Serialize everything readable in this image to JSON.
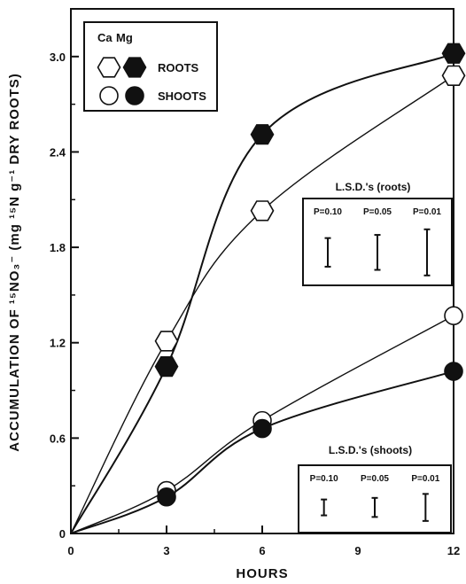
{
  "chart_data": {
    "type": "line",
    "xlabel": "HOURS",
    "ylabel": "ACCUMULATION OF ¹⁵NO₃⁻ (mg ¹⁵N g⁻¹ DRY ROOTS)",
    "xlim": [
      0,
      12
    ],
    "ylim": [
      0,
      3.3
    ],
    "x_ticks": [
      "0",
      "3",
      "6",
      "9",
      "12"
    ],
    "y_ticks": [
      "0",
      "0.6",
      "1.2",
      "1.8",
      "2.4",
      "3.0"
    ],
    "x": [
      0,
      3,
      6,
      12
    ],
    "legend": {
      "header_ca": "Ca",
      "header_mg": "Mg",
      "rows": [
        {
          "label": "ROOTS",
          "marker": "hexagon"
        },
        {
          "label": "SHOOTS",
          "marker": "circle"
        }
      ]
    },
    "series": [
      {
        "name": "Ca ROOTS",
        "treatment": "Ca",
        "organ": "roots",
        "marker": "hexagon",
        "filled": false,
        "values": [
          0,
          1.21,
          2.03,
          2.88
        ]
      },
      {
        "name": "Mg ROOTS",
        "treatment": "Mg",
        "organ": "roots",
        "marker": "hexagon",
        "filled": true,
        "values": [
          0,
          1.05,
          2.51,
          3.02
        ]
      },
      {
        "name": "Ca SHOOTS",
        "treatment": "Ca",
        "organ": "shoots",
        "marker": "circle",
        "filled": false,
        "values": [
          0,
          0.27,
          0.71,
          1.37
        ]
      },
      {
        "name": "Mg SHOOTS",
        "treatment": "Mg",
        "organ": "shoots",
        "marker": "circle",
        "filled": true,
        "values": [
          0,
          0.23,
          0.66,
          1.02
        ]
      }
    ],
    "lsd_roots": {
      "title": "L.S.D.'s (roots)",
      "bars": [
        {
          "label": "P=0.10",
          "value": 0.18
        },
        {
          "label": "P=0.05",
          "value": 0.22
        },
        {
          "label": "P=0.01",
          "value": 0.29
        }
      ]
    },
    "lsd_shoots": {
      "title": "L.S.D.'s (shoots)",
      "bars": [
        {
          "label": "P=0.10",
          "value": 0.1
        },
        {
          "label": "P=0.05",
          "value": 0.12
        },
        {
          "label": "P=0.01",
          "value": 0.17
        }
      ]
    },
    "grid": false,
    "legend_position": "top-left"
  }
}
